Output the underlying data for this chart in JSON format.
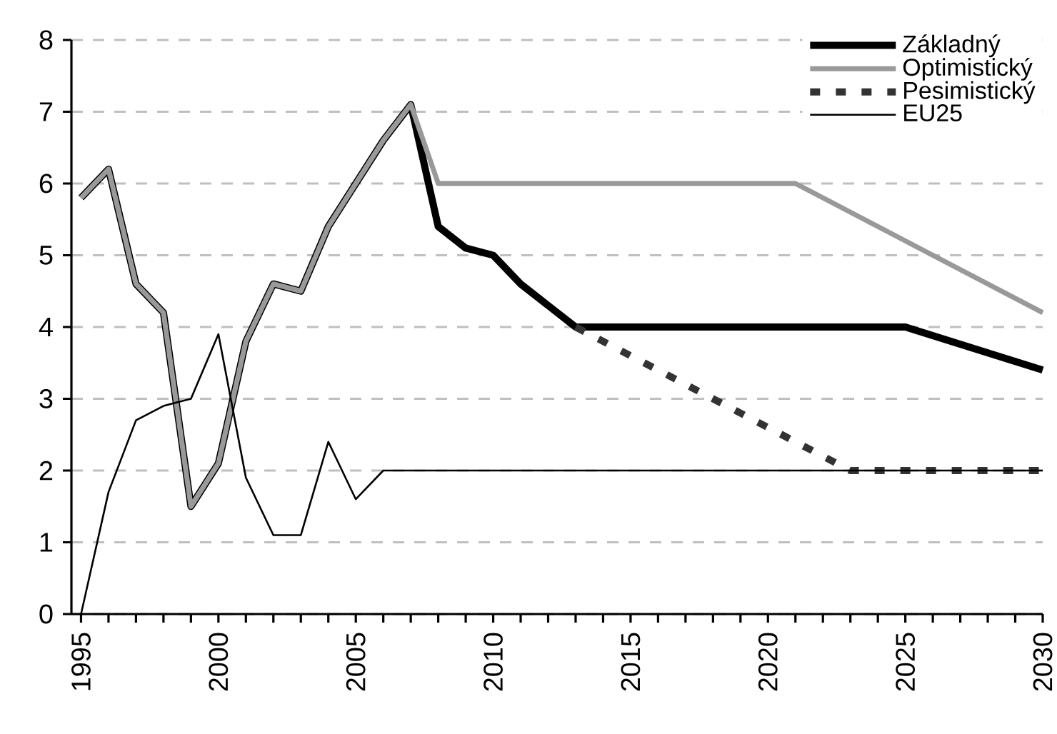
{
  "chart_data": {
    "type": "line",
    "xlim": [
      1994.65,
      2030
    ],
    "ylim": [
      0,
      8
    ],
    "xticks": [
      {
        "value": 1995,
        "label": "1995"
      },
      {
        "value": 1996,
        "label": null
      },
      {
        "value": 1997,
        "label": null
      },
      {
        "value": 1998,
        "label": null
      },
      {
        "value": 1999,
        "label": null
      },
      {
        "value": 2000,
        "label": "2000"
      },
      {
        "value": 2001,
        "label": null
      },
      {
        "value": 2002,
        "label": null
      },
      {
        "value": 2003,
        "label": null
      },
      {
        "value": 2004,
        "label": null
      },
      {
        "value": 2005,
        "label": "2005"
      },
      {
        "value": 2006,
        "label": null
      },
      {
        "value": 2007,
        "label": null
      },
      {
        "value": 2008,
        "label": null
      },
      {
        "value": 2009,
        "label": null
      },
      {
        "value": 2010,
        "label": "2010"
      },
      {
        "value": 2011,
        "label": null
      },
      {
        "value": 2012,
        "label": null
      },
      {
        "value": 2013,
        "label": null
      },
      {
        "value": 2014,
        "label": null
      },
      {
        "value": 2015,
        "label": "2015"
      },
      {
        "value": 2016,
        "label": null
      },
      {
        "value": 2017,
        "label": null
      },
      {
        "value": 2018,
        "label": null
      },
      {
        "value": 2019,
        "label": null
      },
      {
        "value": 2020,
        "label": "2020"
      },
      {
        "value": 2021,
        "label": null
      },
      {
        "value": 2022,
        "label": null
      },
      {
        "value": 2023,
        "label": null
      },
      {
        "value": 2024,
        "label": null
      },
      {
        "value": 2025,
        "label": "2025"
      },
      {
        "value": 2026,
        "label": null
      },
      {
        "value": 2027,
        "label": null
      },
      {
        "value": 2028,
        "label": null
      },
      {
        "value": 2029,
        "label": null
      },
      {
        "value": 2030,
        "label": "2030"
      }
    ],
    "yticks": [
      0,
      1,
      2,
      3,
      4,
      5,
      6,
      7,
      8
    ],
    "grid": "y",
    "legend": "top right",
    "marker": "none",
    "series": [
      {
        "name": "Základný",
        "color": "#000000",
        "line_style": "solid",
        "x": [
          1995,
          1996,
          1997,
          1998,
          1999,
          2000,
          2001,
          2002,
          2003,
          2004,
          2005,
          2006,
          2007,
          2008,
          2009,
          2010,
          2011,
          2012,
          2013,
          2025,
          2030
        ],
        "values": [
          5.8,
          6.2,
          4.6,
          4.2,
          1.5,
          2.1,
          3.8,
          4.6,
          4.5,
          5.4,
          6.0,
          6.6,
          7.1,
          5.4,
          5.1,
          5.0,
          4.6,
          4.3,
          4.0,
          4.0,
          3.4
        ]
      },
      {
        "name": "Optimistický",
        "color": "#999999",
        "line_style": "solid",
        "x": [
          1995,
          1996,
          1997,
          1998,
          1999,
          2000,
          2001,
          2002,
          2003,
          2004,
          2005,
          2006,
          2007,
          2008,
          2021,
          2030
        ],
        "values": [
          5.8,
          6.2,
          4.6,
          4.2,
          1.5,
          2.1,
          3.8,
          4.6,
          4.5,
          5.4,
          6.0,
          6.6,
          7.1,
          6.0,
          6.0,
          4.2
        ]
      },
      {
        "name": "Pesimistický",
        "color": "#333333",
        "line_style": "dashed",
        "x": [
          2013,
          2023,
          2030
        ],
        "values": [
          4.0,
          2.0,
          2.0
        ]
      },
      {
        "name": "EU25",
        "color": "#000000",
        "line_style": "solid",
        "x": [
          1995,
          1996,
          1997,
          1998,
          1999,
          2000,
          2001,
          2002,
          2003,
          2004,
          2005,
          2006,
          2030
        ],
        "values": [
          0.0,
          1.7,
          2.7,
          2.9,
          3.0,
          3.9,
          1.9,
          1.1,
          1.1,
          2.4,
          1.6,
          2.0,
          2.0
        ]
      }
    ]
  }
}
